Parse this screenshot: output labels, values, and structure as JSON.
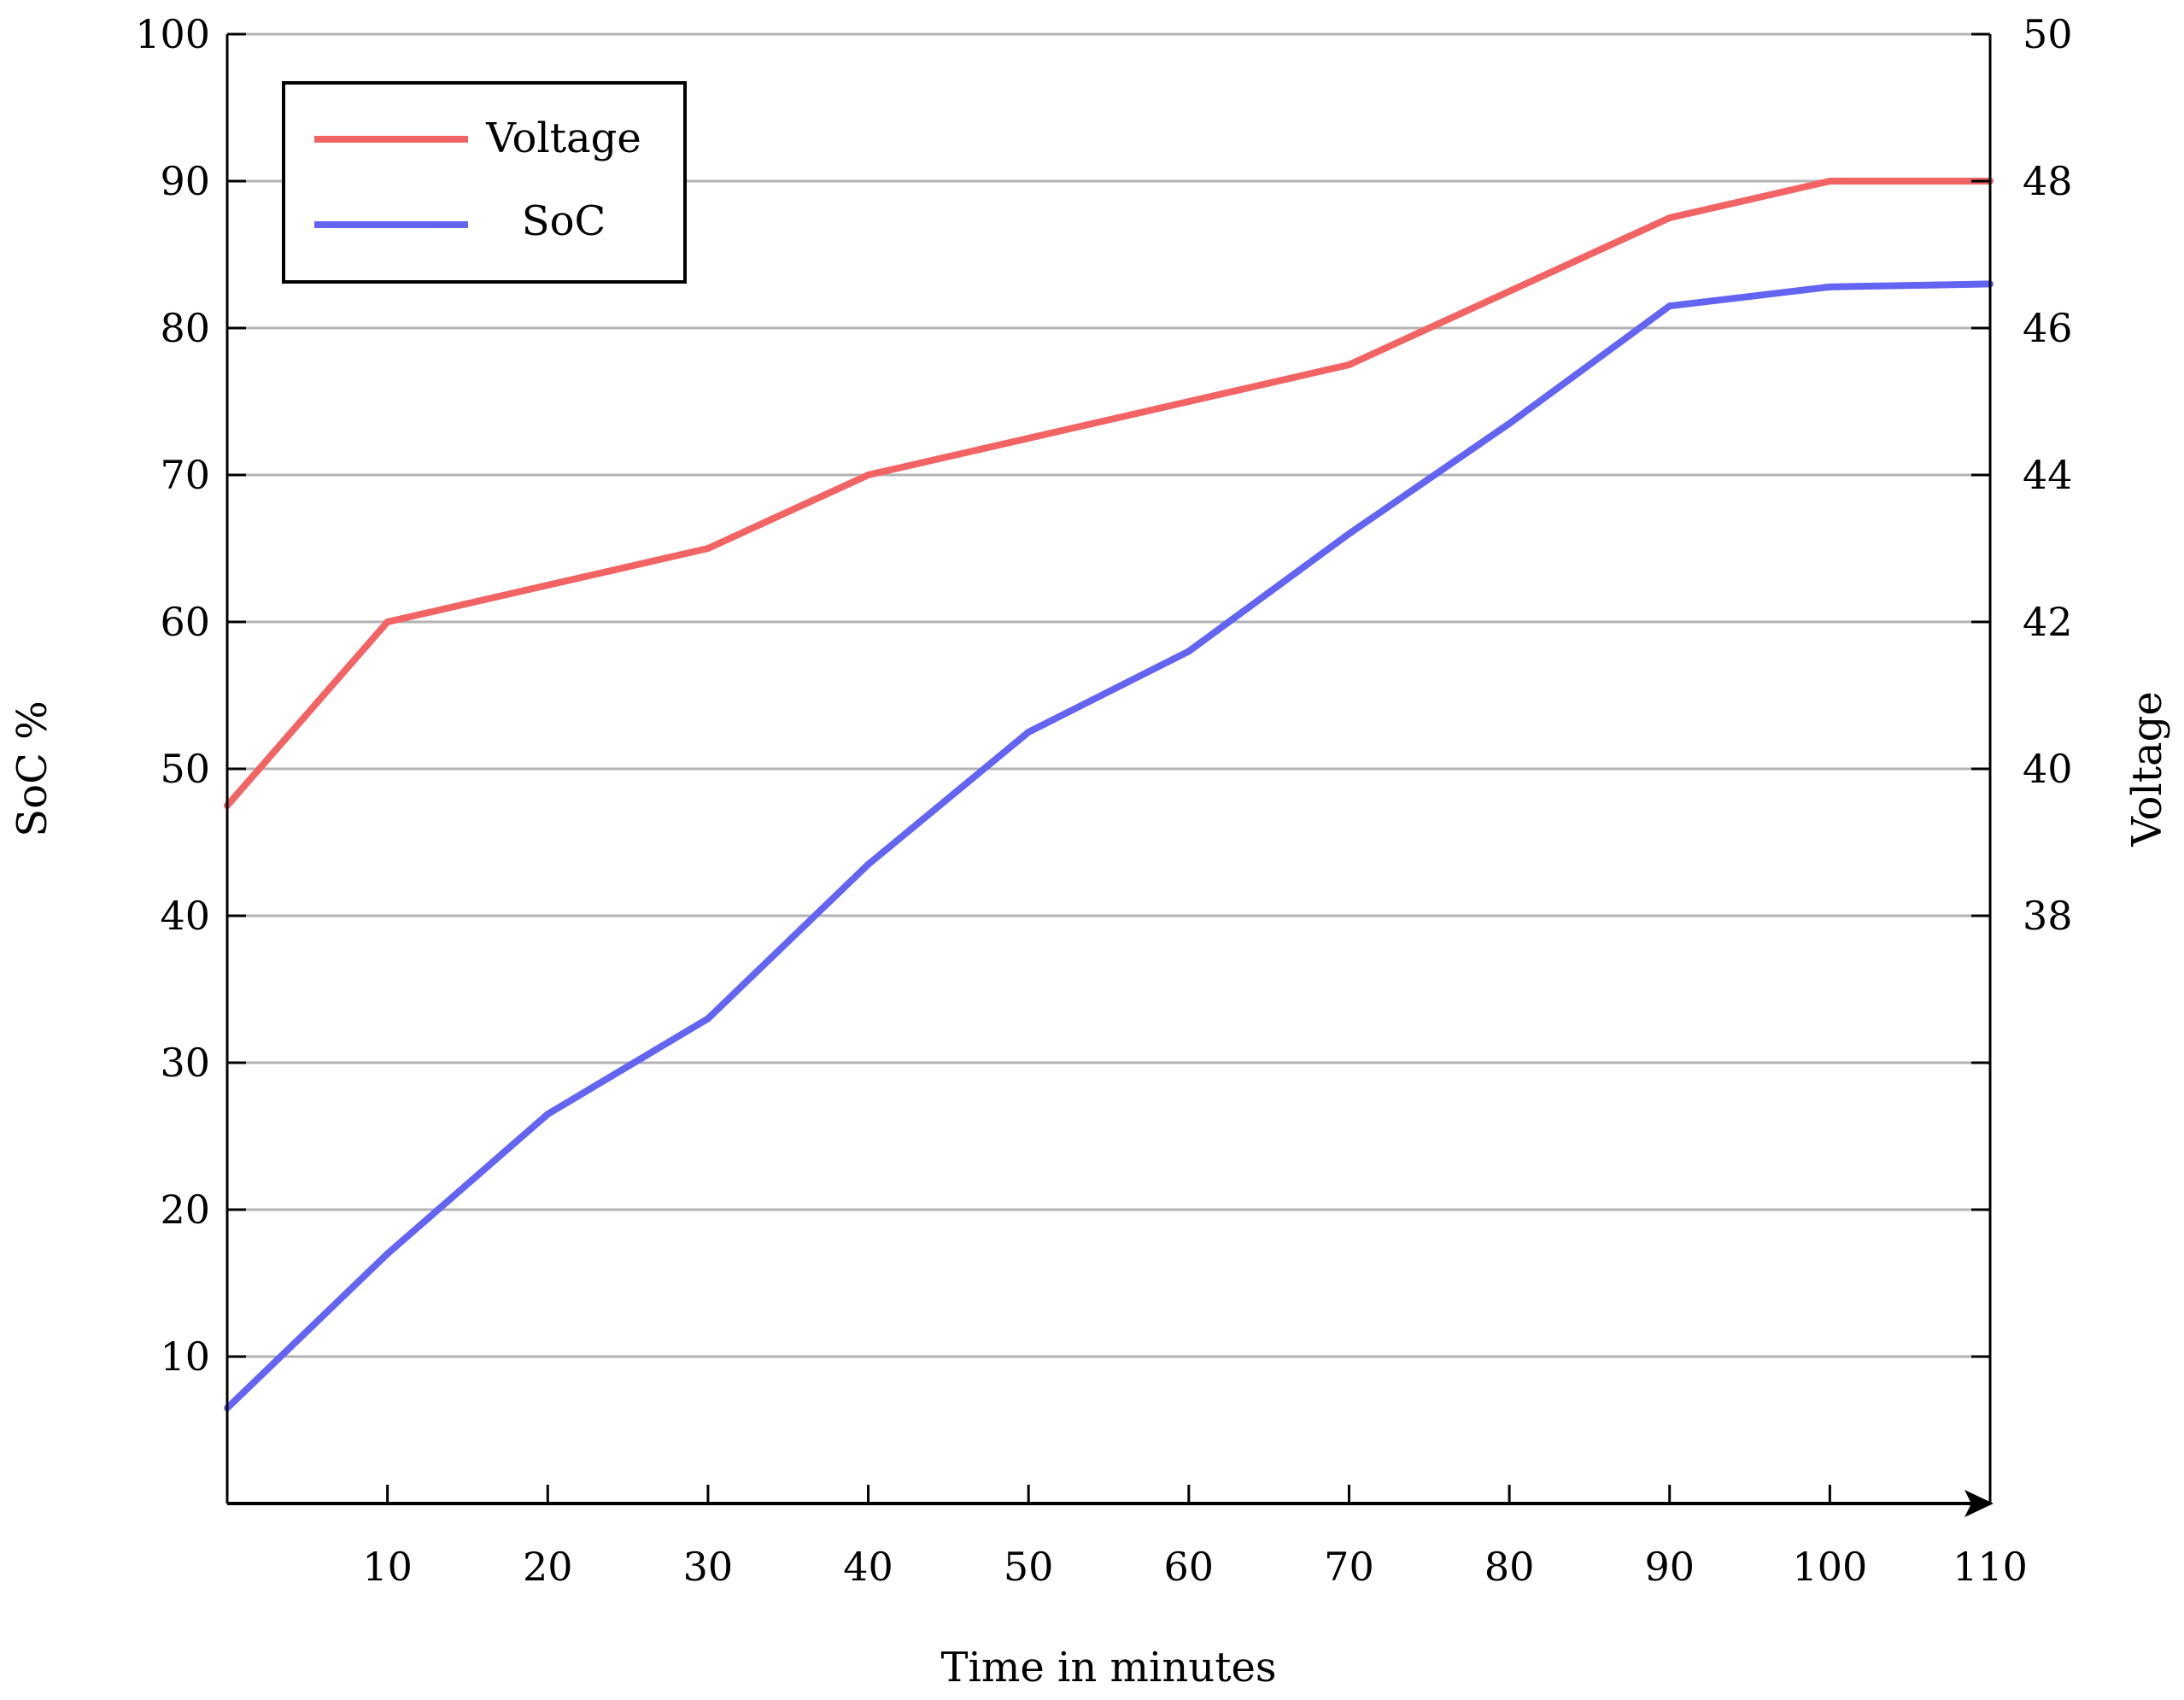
{
  "chart_data": {
    "type": "line",
    "x": [
      0,
      10,
      20,
      30,
      40,
      50,
      60,
      70,
      80,
      90,
      100,
      110
    ],
    "xlabel": "Time in minutes",
    "ylabel_left": "SoC %",
    "ylabel_right": "Voltage",
    "xlim": [
      0,
      110
    ],
    "ylim_left": [
      0,
      100
    ],
    "ylim_right": [
      30,
      50
    ],
    "x_ticks": [
      "10",
      "20",
      "30",
      "40",
      "50",
      "60",
      "70",
      "80",
      "90",
      "100",
      "110"
    ],
    "y_left_ticks": [
      "10",
      "20",
      "30",
      "40",
      "50",
      "60",
      "70",
      "80",
      "90",
      "100"
    ],
    "y_right_ticks": [
      "38",
      "40",
      "42",
      "44",
      "46",
      "48",
      "50"
    ],
    "grid": true,
    "legend_position": "top-left",
    "series": [
      {
        "name": "Voltage",
        "axis": "right",
        "color": "#f26464",
        "values": [
          39.5,
          42,
          42.5,
          43,
          44,
          44.5,
          45,
          45.5,
          46.5,
          47.5,
          48,
          48
        ]
      },
      {
        "name": "SoC",
        "axis": "left",
        "color": "#6464f2",
        "values": [
          6.5,
          17,
          26.5,
          33,
          43.5,
          52.5,
          58,
          66,
          73.5,
          81.5,
          82.8,
          83
        ]
      }
    ]
  }
}
